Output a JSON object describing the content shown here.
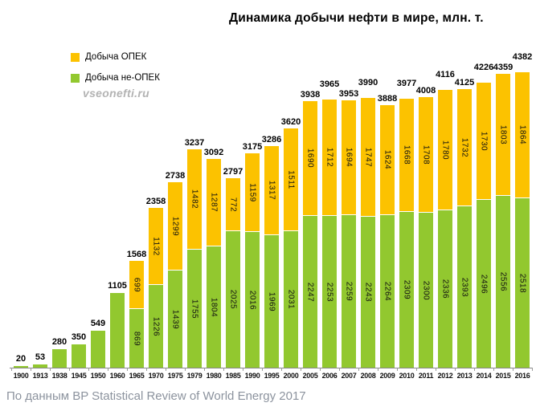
{
  "title": "Динамика добычи нефти в мире, млн. т.",
  "legend": {
    "opec": {
      "label": "Добыча ОПЕК",
      "color": "#FCC200"
    },
    "non_opec": {
      "label": "Добыча не-ОПЕК",
      "color": "#92C82F"
    }
  },
  "watermark": "vseonefti.ru",
  "footer": "По данным BP Statistical Review of World Energy 2017",
  "chart_data": {
    "type": "bar",
    "stacked": true,
    "title": "Динамика добычи нефти в мире, млн. т.",
    "xlabel": "",
    "ylabel": "млн. т.",
    "ylim": [
      0,
      4400
    ],
    "grid": false,
    "legend_position": "top-left",
    "value_labels": "totals above bars; segment values rotated 90° inside bars from 1965 onward",
    "categories": [
      "1900",
      "1913",
      "1938",
      "1945",
      "1950",
      "1960",
      "1965",
      "1970",
      "1975",
      "1979",
      "1980",
      "1985",
      "1990",
      "1995",
      "2000",
      "2005",
      "2006",
      "2007",
      "2008",
      "2009",
      "2010",
      "2011",
      "2012",
      "2013",
      "2014",
      "2015",
      "2016"
    ],
    "series": [
      {
        "name": "Добыча не-ОПЕК",
        "color": "#92C82F",
        "values": [
          20,
          53,
          280,
          350,
          549,
          1105,
          869,
          1226,
          1439,
          1755,
          1804,
          2025,
          2016,
          1969,
          2031,
          2247,
          2253,
          2259,
          2243,
          2264,
          2309,
          2300,
          2336,
          2393,
          2496,
          2556,
          2518
        ]
      },
      {
        "name": "Добыча ОПЕК",
        "color": "#FCC200",
        "values": [
          0,
          0,
          0,
          0,
          0,
          0,
          699,
          1132,
          1299,
          1482,
          1287,
          772,
          1159,
          1317,
          1511,
          1690,
          1712,
          1694,
          1747,
          1624,
          1668,
          1708,
          1780,
          1732,
          1730,
          1803,
          1864
        ]
      }
    ],
    "total_labels": [
      20,
      53,
      280,
      350,
      549,
      1105,
      1568,
      2358,
      2738,
      3237,
      3092,
      2797,
      3175,
      3286,
      3620,
      3938,
      3965,
      3953,
      3990,
      3888,
      3977,
      4008,
      4116,
      4125,
      4226,
      4359,
      4382
    ]
  }
}
